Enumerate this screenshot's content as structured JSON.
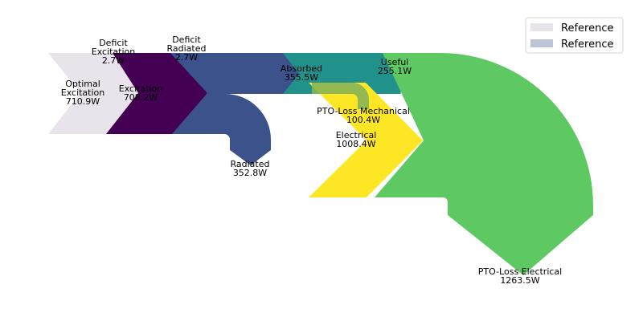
{
  "chart_data": {
    "type": "sankey",
    "unit": "W",
    "flows": [
      {
        "name": "Optimal Excitation",
        "value": 710.9,
        "color": "#e9e4ec"
      },
      {
        "name": "Deficit Excitation",
        "value": 2.7,
        "color": "#e9e4ec"
      },
      {
        "name": "Excitation",
        "value": 708.2,
        "color": "#440154"
      },
      {
        "name": "Deficit Radiated",
        "value": 2.7,
        "color": "#3b528b"
      },
      {
        "name": "Radiated",
        "value": 352.8,
        "color": "#3b528b"
      },
      {
        "name": "Absorbed",
        "value": 355.5,
        "color": "#21918c"
      },
      {
        "name": "Useful",
        "value": 255.1,
        "color": "#21918c"
      },
      {
        "name": "PTO-Loss Mechanical",
        "value": 100.4,
        "color": "#86b556"
      },
      {
        "name": "Electrical",
        "value": 1008.4,
        "color": "#fde725"
      },
      {
        "name": "PTO-Loss Electrical",
        "value": 1263.5,
        "color": "#5ec962"
      }
    ],
    "labels": [
      {
        "id": "optimal",
        "lines": [
          "Optimal",
          "Excitation",
          "710.9W"
        ]
      },
      {
        "id": "deficit-excitation",
        "lines": [
          "Deficit",
          "Excitation",
          "2.7W"
        ]
      },
      {
        "id": "excitation",
        "lines": [
          "Excitation",
          "708.2W"
        ]
      },
      {
        "id": "deficit-radiated",
        "lines": [
          "Deficit",
          "Radiated",
          "2.7W"
        ]
      },
      {
        "id": "absorbed",
        "lines": [
          "Absorbed",
          "355.5W"
        ]
      },
      {
        "id": "useful",
        "lines": [
          "Useful",
          "255.1W"
        ]
      },
      {
        "id": "pto-mech",
        "lines": [
          "PTO-Loss Mechanical",
          "100.4W"
        ]
      },
      {
        "id": "electrical",
        "lines": [
          "Electrical",
          "1008.4W"
        ]
      },
      {
        "id": "radiated",
        "lines": [
          "Radiated",
          "352.8W"
        ]
      },
      {
        "id": "pto-elec",
        "lines": [
          "PTO-Loss Electrical",
          "1263.5W"
        ]
      }
    ],
    "legend": {
      "placement": "top-right",
      "entries": [
        {
          "label": "Reference",
          "color": "#e9e4ec"
        },
        {
          "label": "Reference",
          "color": "#bcc3d4"
        }
      ]
    }
  }
}
